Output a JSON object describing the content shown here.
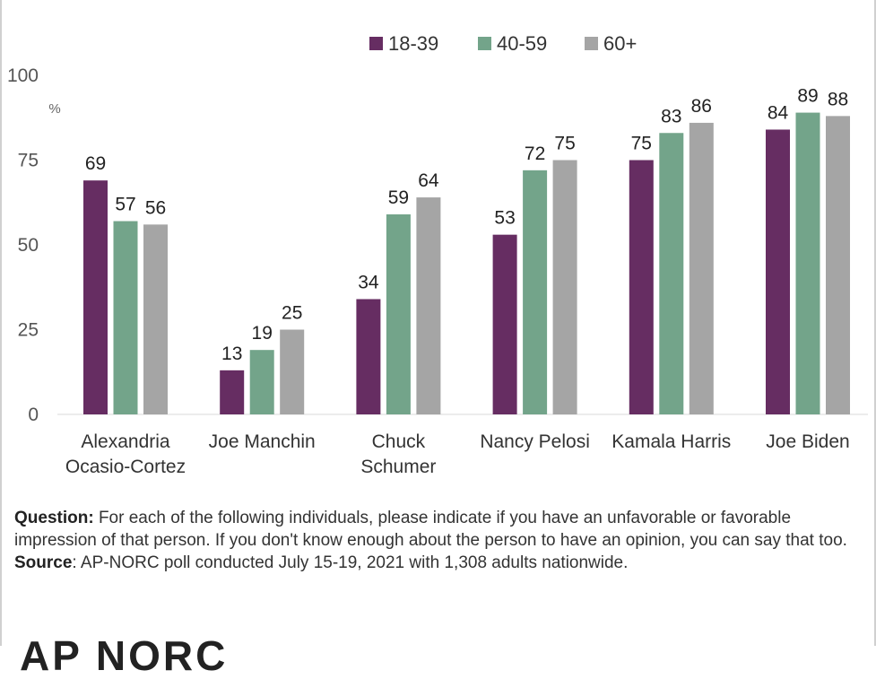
{
  "chart_data": {
    "type": "bar",
    "title": "",
    "unit_label": "%",
    "xlabel": "",
    "ylabel": "",
    "ylim": [
      0,
      100
    ],
    "yticks": [
      0,
      25,
      50,
      75,
      100
    ],
    "grid": false,
    "legend_position": "top-center",
    "categories": [
      [
        "Alexandria",
        "Ocasio-Cortez"
      ],
      [
        "Joe Manchin"
      ],
      [
        "Chuck",
        "Schumer"
      ],
      [
        "Nancy Pelosi"
      ],
      [
        "Kamala Harris"
      ],
      [
        "Joe Biden"
      ]
    ],
    "series": [
      {
        "name": "18-39",
        "color": "#662d62",
        "values": [
          69,
          13,
          34,
          53,
          75,
          84
        ]
      },
      {
        "name": "40-59",
        "color": "#73a48a",
        "values": [
          57,
          19,
          59,
          72,
          83,
          89
        ]
      },
      {
        "name": "60+",
        "color": "#a5a5a5",
        "values": [
          56,
          25,
          64,
          75,
          86,
          88
        ]
      }
    ]
  },
  "notes": {
    "question_label": "Question:",
    "question_text": " For each of the following individuals, please indicate if you have an unfavorable or favorable impression of that person. If you don't know enough about the person to have an opinion, you can say that too.",
    "source_label": "Source",
    "source_text": ": AP-NORC poll conducted July 15-19, 2021 with 1,308 adults nationwide."
  },
  "logo_text": "AP NORC"
}
